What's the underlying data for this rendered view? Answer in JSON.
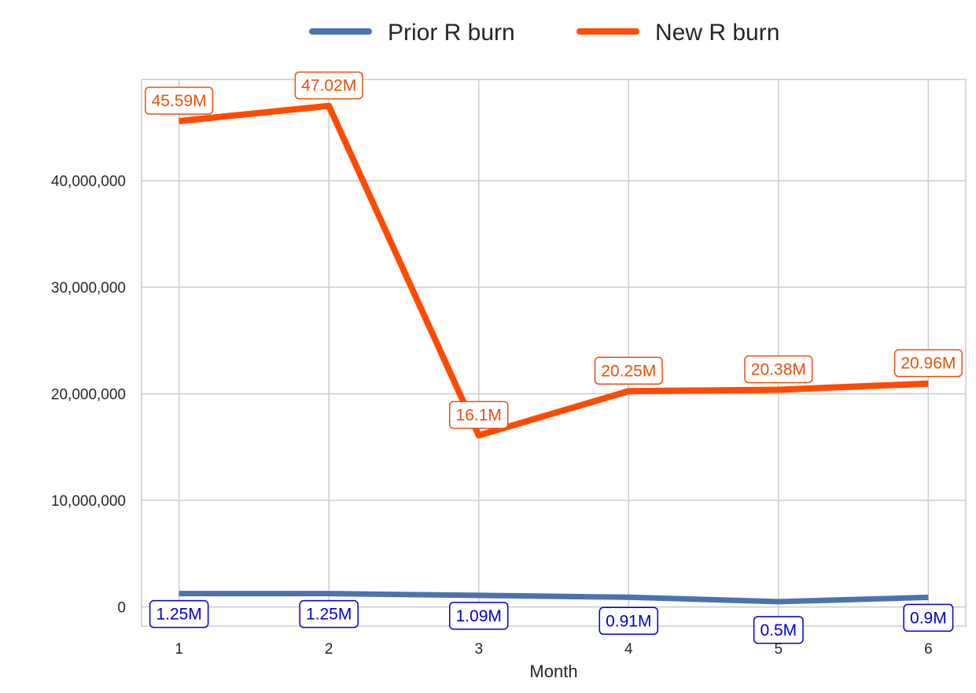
{
  "chart_data": {
    "type": "line",
    "title": "",
    "xlabel": "Month",
    "ylabel": "",
    "x": [
      1,
      2,
      3,
      4,
      5,
      6
    ],
    "x_tick_labels": [
      "1",
      "2",
      "3",
      "4",
      "5",
      "6"
    ],
    "xlim": [
      0.75,
      6.25
    ],
    "ylim": [
      -1800000,
      49500000
    ],
    "y_ticks": [
      0,
      10000000,
      20000000,
      30000000,
      40000000
    ],
    "y_tick_labels": [
      "0",
      "10,000,000",
      "20,000,000",
      "30,000,000",
      "40,000,000"
    ],
    "grid": true,
    "legend_position": "top-center",
    "series": [
      {
        "name": "Prior R burn",
        "color": "#4c72b0",
        "label_color": "#0000cc",
        "values": [
          1250000,
          1250000,
          1090000,
          910000,
          500000,
          900000
        ],
        "data_labels": [
          "1.25M",
          "1.25M",
          "1.09M",
          "0.91M",
          "0.5M",
          "0.9M"
        ]
      },
      {
        "name": "New R burn",
        "color": "#ff4b00",
        "label_color": "#e8510c",
        "values": [
          45590000,
          47020000,
          16100000,
          20250000,
          20380000,
          20960000
        ],
        "data_labels": [
          "45.59M",
          "47.02M",
          "16.1M",
          "20.25M",
          "20.38M",
          "20.96M"
        ]
      }
    ]
  }
}
